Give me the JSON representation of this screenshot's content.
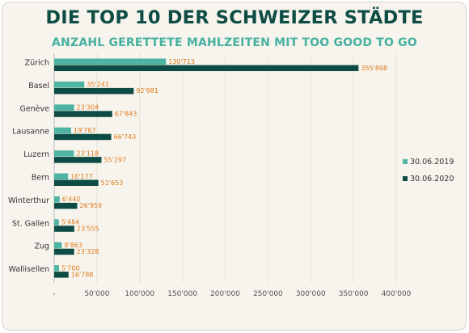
{
  "title": "DIE TOP 10 DER SCHWEIZER STÄDTE",
  "subtitle": "ANZAHL GERETTETE MAHLZEITEN MIT TOO GOOD TO GO",
  "colors": {
    "series_2019": "#4db3a2",
    "series_2020": "#0d4c44",
    "data_label": "#e07b1e",
    "axis_text": "#555555"
  },
  "chart_data": {
    "type": "bar",
    "orientation": "horizontal",
    "title": "DIE TOP 10 DER SCHWEIZER STÄDTE",
    "subtitle": "ANZAHL GERETTETE MAHLZEITEN MIT TOO GOOD TO GO",
    "categories": [
      "Zürich",
      "Basel",
      "Genève",
      "Lausanne",
      "Luzern",
      "Bern",
      "Winterthur",
      "St. Gallen",
      "Zug",
      "Wallisellen"
    ],
    "series": [
      {
        "name": "30.06.2019",
        "values": [
          130713,
          35241,
          23304,
          19767,
          23118,
          16177,
          6440,
          5484,
          8863,
          5700
        ],
        "labels": [
          "130'713",
          "35'241",
          "23'304",
          "19'767",
          "23'118",
          "16'177",
          "6'440",
          "5'484",
          "8'863",
          "5'700"
        ]
      },
      {
        "name": "30.06.2020",
        "values": [
          355898,
          92981,
          67843,
          66743,
          55297,
          51653,
          26959,
          23555,
          23328,
          16788
        ],
        "labels": [
          "355'898",
          "92'981",
          "67'843",
          "66'743",
          "55'297",
          "51'653",
          "26'959",
          "23'555",
          "23'328",
          "16'788"
        ]
      }
    ],
    "xlim": [
      0,
      400000
    ],
    "xticks": [
      0,
      50000,
      100000,
      150000,
      200000,
      250000,
      300000,
      350000,
      400000
    ],
    "xtick_labels": [
      "-",
      "50'000",
      "100'000",
      "150'000",
      "200'000",
      "250'000",
      "300'000",
      "350'000",
      "400'000"
    ],
    "grid": "vertical",
    "legend_position": "right"
  }
}
